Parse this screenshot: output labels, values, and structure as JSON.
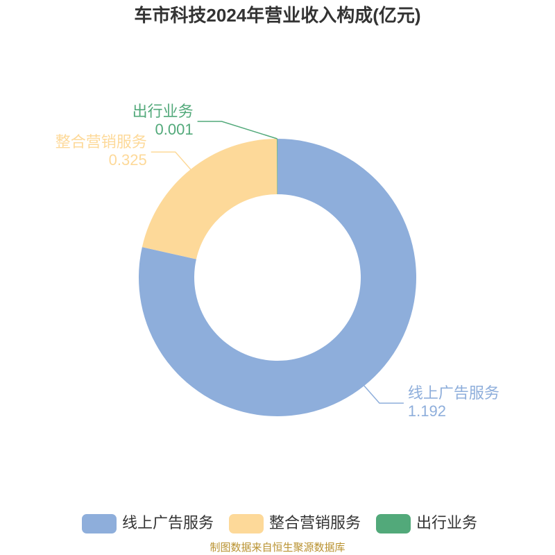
{
  "chart_data": {
    "type": "donut",
    "title": "车市科技2024年营业收入构成(亿元)",
    "categories": [
      "线上广告服务",
      "整合营销服务",
      "出行业务"
    ],
    "values": [
      1.192,
      0.325,
      0.001
    ],
    "colors": [
      "#8eaedb",
      "#fdd999",
      "#52a97a"
    ],
    "legend": "bottom",
    "source": "制图数据来自恒生聚源数据库"
  }
}
